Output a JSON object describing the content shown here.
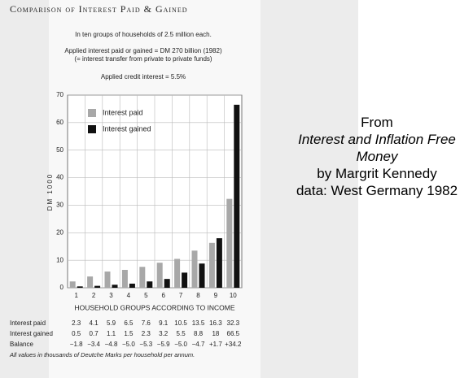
{
  "chart_data": {
    "type": "bar",
    "title": "Comparison of Interest Paid & Gained",
    "notes": [
      "In ten groups of households of 2.5 million each.",
      "Applied interest paid or gained = DM 270 billion (1982)",
      "(= interest transfer from private to private funds)",
      "Applied credit interest = 5.5%"
    ],
    "y_label": "DM 1000",
    "x_label": "HOUSEHOLD GROUPS ACCORDING TO INCOME",
    "categories": [
      "1",
      "2",
      "3",
      "4",
      "5",
      "6",
      "7",
      "8",
      "9",
      "10"
    ],
    "series": [
      {
        "name": "Interest paid",
        "color": "#a8a8a8",
        "values": [
          2.3,
          4.1,
          5.9,
          6.5,
          7.6,
          9.1,
          10.5,
          13.5,
          16.3,
          32.3
        ]
      },
      {
        "name": "Interest gained",
        "color": "#111111",
        "values": [
          0.5,
          0.7,
          1.1,
          1.5,
          2.3,
          3.2,
          5.5,
          8.8,
          18.0,
          66.5
        ]
      }
    ],
    "balance": {
      "name": "Balance",
      "values": [
        -1.8,
        -3.4,
        -4.8,
        -5.0,
        -5.3,
        -5.9,
        -5.0,
        -4.7,
        1.7,
        34.2
      ],
      "value_labels": [
        "−1.8",
        "−3.4",
        "−4.8",
        "−5.0",
        "−5.3",
        "−5.9",
        "−5.0",
        "−4.7",
        "+1.7",
        "+34.2"
      ]
    },
    "ylim": [
      0,
      70
    ],
    "yticks": [
      0,
      10,
      20,
      30,
      40,
      50,
      60,
      70
    ],
    "grid": true,
    "footnote": "All values in thousands of Deutche Marks per household per annum."
  },
  "attribution": {
    "from": "From",
    "book": "Interest and Inflation Free Money",
    "author": "by Margrit Kennedy",
    "data": "data: West Germany 1982"
  }
}
